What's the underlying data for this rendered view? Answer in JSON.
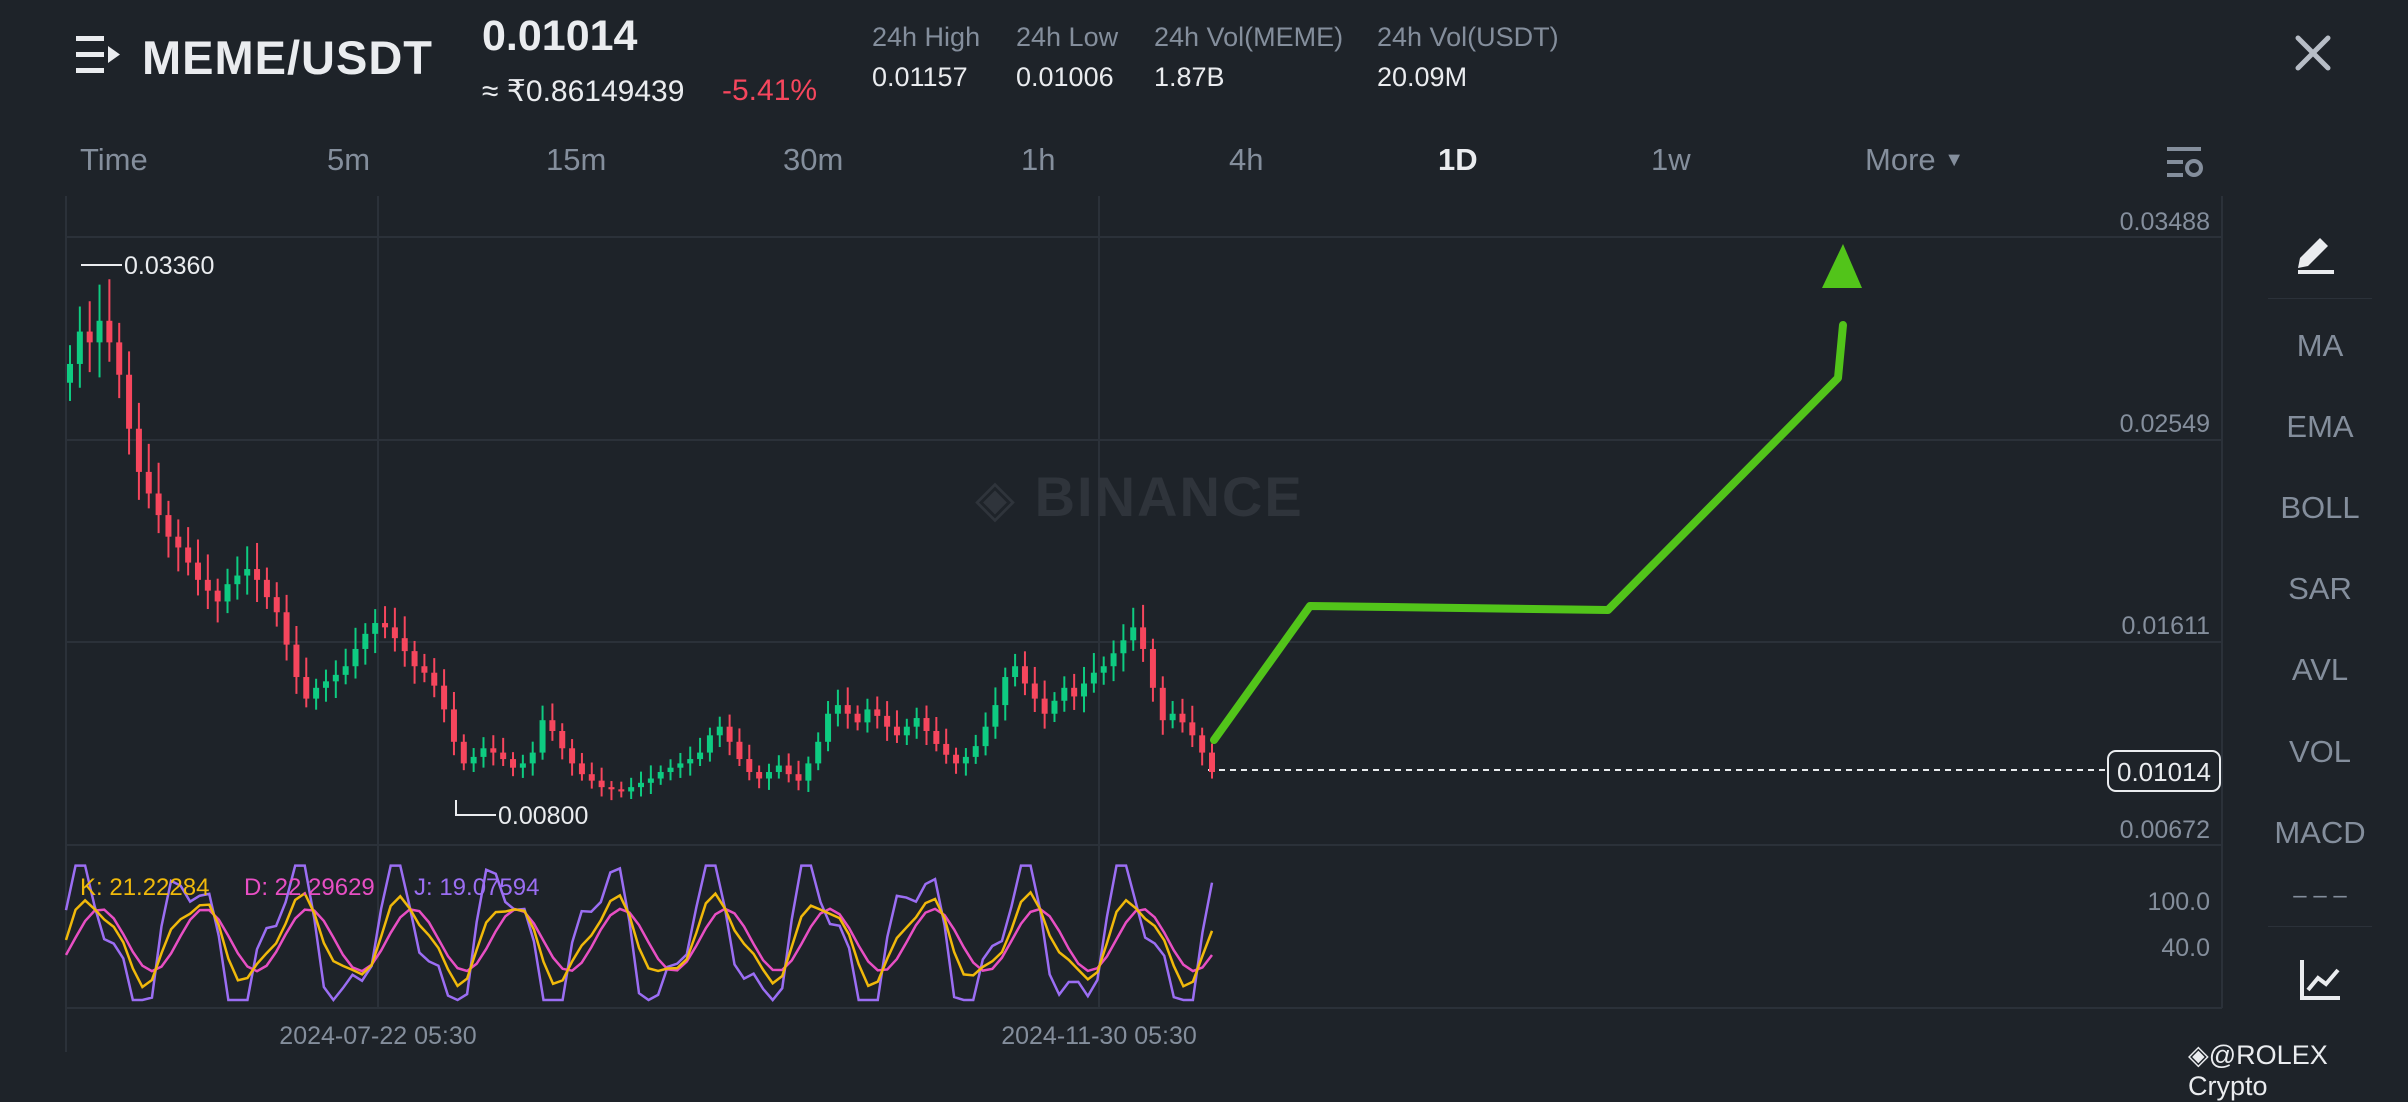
{
  "header": {
    "menu_icon": "hamburger-icon",
    "pair": "MEME/USDT",
    "last_price": "0.01014",
    "approx_inr": "≈ ₹0.86149439",
    "change_pct": "-5.41%",
    "stats": [
      {
        "label": "24h High",
        "value": "0.01157"
      },
      {
        "label": "24h Low",
        "value": "0.01006"
      },
      {
        "label": "24h Vol(MEME)",
        "value": "1.87B"
      },
      {
        "label": "24h Vol(USDT)",
        "value": "20.09M"
      }
    ],
    "close_icon": "close-icon"
  },
  "timeframes": {
    "items": [
      "Time",
      "5m",
      "15m",
      "30m",
      "1h",
      "4h",
      "1D",
      "1w"
    ],
    "active": "1D",
    "more_label": "More",
    "settings_icon": "chart-settings-icon"
  },
  "side_tools": {
    "draw_icon": "draw-pen-icon",
    "indicators": [
      "MA",
      "EMA",
      "BOLL",
      "SAR",
      "AVL",
      "VOL",
      "MACD"
    ],
    "more": "– – –",
    "bottom_icon": "chart-type-icon"
  },
  "watermark": "BINANCE",
  "credit": "@ROLEX Crypto",
  "colors": {
    "up": "#0ecb81",
    "down": "#f6465d",
    "k_line": "#f0b90b",
    "d_line": "#e84fc4",
    "j_line": "#9b6ef3",
    "arrow": "#52c41a",
    "background": "#1e2329"
  },
  "chart_data": {
    "type": "candlestick",
    "symbol": "MEME/USDT",
    "interval": "1D",
    "price_axis_ticks": [
      "0.03488",
      "0.02549",
      "0.01611",
      "0.00672"
    ],
    "current_price_label": "0.01014",
    "high_marker": "0.03360",
    "low_marker": "0.00800",
    "time_axis_labels": [
      "2024-07-22 05:30",
      "2024-11-30 05:30"
    ],
    "close_series_approx": [
      0.029,
      0.0305,
      0.03,
      0.031,
      0.03,
      0.0285,
      0.026,
      0.024,
      0.023,
      0.022,
      0.021,
      0.0205,
      0.0198,
      0.019,
      0.0185,
      0.018,
      0.0188,
      0.0192,
      0.0195,
      0.019,
      0.0182,
      0.0175,
      0.016,
      0.0145,
      0.0135,
      0.014,
      0.0143,
      0.0146,
      0.015,
      0.0158,
      0.0165,
      0.017,
      0.0168,
      0.0163,
      0.0157,
      0.015,
      0.0147,
      0.0141,
      0.013,
      0.0115,
      0.0105,
      0.0108,
      0.0112,
      0.011,
      0.0107,
      0.0103,
      0.0105,
      0.011,
      0.0125,
      0.012,
      0.0112,
      0.0105,
      0.01,
      0.0097,
      0.0094,
      0.0093,
      0.0092,
      0.0094,
      0.0096,
      0.0098,
      0.0101,
      0.0103,
      0.0105,
      0.0107,
      0.011,
      0.0118,
      0.0122,
      0.0115,
      0.0107,
      0.0101,
      0.0098,
      0.0101,
      0.0104,
      0.01,
      0.0097,
      0.0105,
      0.0115,
      0.0128,
      0.0132,
      0.0128,
      0.0124,
      0.013,
      0.0127,
      0.0122,
      0.0118,
      0.0122,
      0.0126,
      0.012,
      0.0114,
      0.0109,
      0.0105,
      0.0108,
      0.0113,
      0.0122,
      0.0132,
      0.0145,
      0.015,
      0.0142,
      0.0135,
      0.0128,
      0.0134,
      0.014,
      0.0136,
      0.0142,
      0.0147,
      0.015,
      0.0156,
      0.0162,
      0.0168,
      0.0158,
      0.014,
      0.0125,
      0.0128,
      0.0124,
      0.0118,
      0.011,
      0.0101
    ],
    "kdj": {
      "K": 21.22284,
      "D": 22.29629,
      "J": 19.07594,
      "K_label": "K: 21.22284",
      "D_label": "D: 22.29629",
      "J_label": "J: 19.07594",
      "axis_ticks": [
        "100.0",
        "40.0"
      ]
    },
    "annotation": "hand-drawn green projection arrow pointing up"
  }
}
